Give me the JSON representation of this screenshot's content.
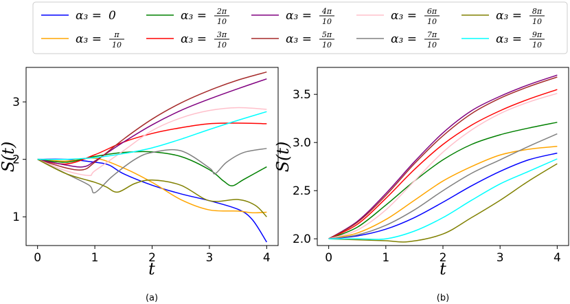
{
  "legend": {
    "entries": [
      {
        "label_prefix": "α₃ =",
        "value": "0",
        "frac": false,
        "color": "#0000ff"
      },
      {
        "label_prefix": "α₃ =",
        "num": "π",
        "den": "10",
        "frac": true,
        "color": "#ffa500"
      },
      {
        "label_prefix": "α₃ =",
        "num": "2π",
        "den": "10",
        "frac": true,
        "color": "#008000"
      },
      {
        "label_prefix": "α₃ =",
        "num": "3π",
        "den": "10",
        "frac": true,
        "color": "#ff0000"
      },
      {
        "label_prefix": "α₃ =",
        "num": "4π",
        "den": "10",
        "frac": true,
        "color": "#800080"
      },
      {
        "label_prefix": "α₃ =",
        "num": "5π",
        "den": "10",
        "frac": true,
        "color": "#a52a2a"
      },
      {
        "label_prefix": "α₃ =",
        "num": "6π",
        "den": "10",
        "frac": true,
        "color": "#ffc0cb"
      },
      {
        "label_prefix": "α₃ =",
        "num": "7π",
        "den": "10",
        "frac": true,
        "color": "#808080"
      },
      {
        "label_prefix": "α₃ =",
        "num": "8π",
        "den": "10",
        "frac": true,
        "color": "#808000"
      },
      {
        "label_prefix": "α₃ =",
        "num": "9π",
        "den": "10",
        "frac": true,
        "color": "#00ffff"
      }
    ]
  },
  "chart_data": [
    {
      "type": "line",
      "caption": "(a)",
      "xlabel": "t",
      "ylabel": "S(t)",
      "xlim": [
        -0.2,
        4.2
      ],
      "ylim": [
        0.5,
        3.6
      ],
      "xticks": [
        "0",
        "1",
        "2",
        "3",
        "4"
      ],
      "yticks": [
        "1",
        "2",
        "3"
      ],
      "xtick_values": [
        0,
        1,
        2,
        3,
        4
      ],
      "ytick_values": [
        1,
        2,
        3
      ],
      "grid": false,
      "series": [
        {
          "color": "#0000ff",
          "x": [
            0,
            0.5,
            1,
            1.25,
            1.5,
            2,
            2.5,
            3,
            3.5,
            3.75,
            4
          ],
          "y": [
            2,
            2,
            1.95,
            1.9,
            1.75,
            1.55,
            1.4,
            1.28,
            1.13,
            0.95,
            0.56
          ]
        },
        {
          "color": "#ffa500",
          "x": [
            0,
            0.5,
            1,
            1.5,
            2,
            2.5,
            3,
            3.5,
            3.75,
            4
          ],
          "y": [
            2,
            1.97,
            2.02,
            1.85,
            1.6,
            1.3,
            1.12,
            1.1,
            1.07,
            1.08
          ]
        },
        {
          "color": "#008000",
          "x": [
            0,
            0.5,
            1,
            1.5,
            2,
            2.5,
            3,
            3.25,
            3.4,
            3.6,
            4
          ],
          "y": [
            2,
            1.95,
            2.05,
            2.12,
            2.13,
            2.05,
            1.82,
            1.62,
            1.54,
            1.65,
            1.87
          ]
        },
        {
          "color": "#ff0000",
          "x": [
            0,
            0.5,
            1,
            1.5,
            2,
            2.5,
            3,
            3.5,
            4
          ],
          "y": [
            2,
            1.92,
            2.08,
            2.3,
            2.45,
            2.55,
            2.62,
            2.63,
            2.62
          ]
        },
        {
          "color": "#800080",
          "x": [
            0,
            0.5,
            0.8,
            1,
            1.5,
            2,
            2.5,
            3,
            3.5,
            4
          ],
          "y": [
            2,
            1.9,
            1.87,
            1.97,
            2.3,
            2.6,
            2.85,
            3.05,
            3.23,
            3.4
          ]
        },
        {
          "color": "#a52a2a",
          "x": [
            0,
            0.5,
            0.8,
            1,
            1.5,
            2,
            2.5,
            3,
            3.5,
            4
          ],
          "y": [
            2,
            1.85,
            1.82,
            1.95,
            2.35,
            2.7,
            2.98,
            3.2,
            3.38,
            3.52
          ]
        },
        {
          "color": "#ffc0cb",
          "x": [
            0,
            0.5,
            0.9,
            1,
            1.5,
            2,
            2.5,
            3,
            3.5,
            4
          ],
          "y": [
            2,
            1.8,
            1.72,
            1.8,
            2.15,
            2.5,
            2.72,
            2.85,
            2.9,
            2.87
          ]
        },
        {
          "color": "#808080",
          "x": [
            0,
            0.5,
            0.9,
            1,
            1.3,
            1.7,
            2,
            2.5,
            3,
            3.1,
            3.3,
            3.6,
            4
          ],
          "y": [
            2,
            1.75,
            1.55,
            1.42,
            1.7,
            2.0,
            2.12,
            2.15,
            1.85,
            1.75,
            1.95,
            2.12,
            2.19
          ]
        },
        {
          "color": "#808000",
          "x": [
            0,
            0.5,
            1,
            1.2,
            1.4,
            1.7,
            2,
            2.5,
            3,
            3.5,
            3.8,
            4
          ],
          "y": [
            2,
            1.75,
            1.6,
            1.52,
            1.43,
            1.58,
            1.64,
            1.55,
            1.28,
            1.3,
            1.2,
            1.0
          ]
        },
        {
          "color": "#00ffff",
          "x": [
            0,
            0.5,
            1,
            1.5,
            2,
            2.5,
            3,
            3.5,
            4
          ],
          "y": [
            2,
            2.0,
            2.03,
            2.1,
            2.2,
            2.35,
            2.52,
            2.68,
            2.83
          ]
        }
      ]
    },
    {
      "type": "line",
      "caption": "(b)",
      "xlabel": "t",
      "ylabel": "S(t)",
      "xlim": [
        -0.2,
        4.2
      ],
      "ylim": [
        1.93,
        3.78
      ],
      "xticks": [
        "0",
        "1",
        "2",
        "3",
        "4"
      ],
      "yticks": [
        "2.0",
        "2.5",
        "3.0",
        "3.5"
      ],
      "xtick_values": [
        0,
        1,
        2,
        3,
        4
      ],
      "ytick_values": [
        2.0,
        2.5,
        3.0,
        3.5
      ],
      "grid": false,
      "series": [
        {
          "color": "#0000ff",
          "x": [
            0,
            0.5,
            1,
            1.5,
            2,
            2.5,
            3,
            3.5,
            4
          ],
          "y": [
            2,
            2.03,
            2.1,
            2.22,
            2.38,
            2.55,
            2.7,
            2.82,
            2.89
          ]
        },
        {
          "color": "#ffa500",
          "x": [
            0,
            0.5,
            1,
            1.5,
            2,
            2.5,
            3,
            3.5,
            4
          ],
          "y": [
            2,
            2.06,
            2.2,
            2.4,
            2.6,
            2.75,
            2.87,
            2.93,
            2.96
          ]
        },
        {
          "color": "#008000",
          "x": [
            0,
            0.5,
            1,
            1.5,
            2,
            2.5,
            3,
            3.5,
            4
          ],
          "y": [
            2,
            2.12,
            2.35,
            2.6,
            2.82,
            2.98,
            3.08,
            3.15,
            3.21
          ]
        },
        {
          "color": "#ff0000",
          "x": [
            0,
            0.5,
            1,
            1.5,
            2,
            2.5,
            3,
            3.5,
            4
          ],
          "y": [
            2,
            2.15,
            2.42,
            2.72,
            2.98,
            3.18,
            3.33,
            3.45,
            3.55
          ]
        },
        {
          "color": "#800080",
          "x": [
            0,
            0.5,
            1,
            1.5,
            2,
            2.5,
            3,
            3.5,
            4
          ],
          "y": [
            2,
            2.18,
            2.47,
            2.8,
            3.1,
            3.33,
            3.48,
            3.6,
            3.7
          ]
        },
        {
          "color": "#a52a2a",
          "x": [
            0,
            0.5,
            1,
            1.5,
            2,
            2.5,
            3,
            3.5,
            4
          ],
          "y": [
            2,
            2.17,
            2.45,
            2.78,
            3.07,
            3.3,
            3.46,
            3.58,
            3.68
          ]
        },
        {
          "color": "#ffc0cb",
          "x": [
            0,
            0.5,
            1,
            1.5,
            2,
            2.5,
            3,
            3.5,
            4
          ],
          "y": [
            2,
            2.09,
            2.3,
            2.6,
            2.9,
            3.13,
            3.3,
            3.42,
            3.51
          ]
        },
        {
          "color": "#808080",
          "x": [
            0,
            0.5,
            1,
            1.5,
            2,
            2.5,
            3,
            3.5,
            4
          ],
          "y": [
            2,
            2.04,
            2.14,
            2.3,
            2.5,
            2.68,
            2.82,
            2.96,
            3.09
          ]
        },
        {
          "color": "#808000",
          "x": [
            0,
            0.5,
            1,
            1.4,
            2,
            2.5,
            3,
            3.5,
            4
          ],
          "y": [
            2,
            1.99,
            1.98,
            1.97,
            2.05,
            2.22,
            2.4,
            2.6,
            2.78
          ]
        },
        {
          "color": "#00ffff",
          "x": [
            0,
            0.5,
            1,
            1.5,
            2,
            2.5,
            3,
            3.5,
            4
          ],
          "y": [
            2,
            2.0,
            2.0,
            2.08,
            2.22,
            2.4,
            2.57,
            2.7,
            2.83
          ]
        }
      ]
    }
  ]
}
